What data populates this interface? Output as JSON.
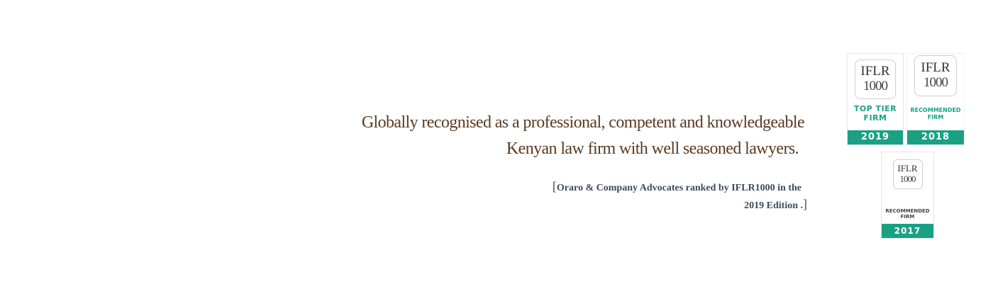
{
  "tagline": {
    "line1": "Globally recognised as a professional, competent and knowledgeable",
    "line2": "Kenyan law firm with well seasoned lawyers."
  },
  "ranking": {
    "open_bracket": "[",
    "line1": "Oraro & Company Advocates ranked  by  IFLR1000  in the",
    "line2": "2019 Edition .",
    "close_bracket": "]"
  },
  "badges": [
    {
      "logo_line1": "IFLR",
      "logo_line2": "1000",
      "label_line1": "TOP TIER",
      "label_line2": "FIRM",
      "year": "2019"
    },
    {
      "logo_line1": "IFLR",
      "logo_line2": "1000",
      "label_line1": "RECOMMENDED",
      "label_line2": "FIRM",
      "year": "2018"
    },
    {
      "logo_line1": "IFLR",
      "logo_line2": "1000",
      "label_line1": "RECOMMENDED",
      "label_line2": "FIRM",
      "year": "2017"
    }
  ],
  "colors": {
    "tagline": "#5b3a22",
    "ranking": "#3e4a5c",
    "badge_accent": "#1aa184"
  }
}
